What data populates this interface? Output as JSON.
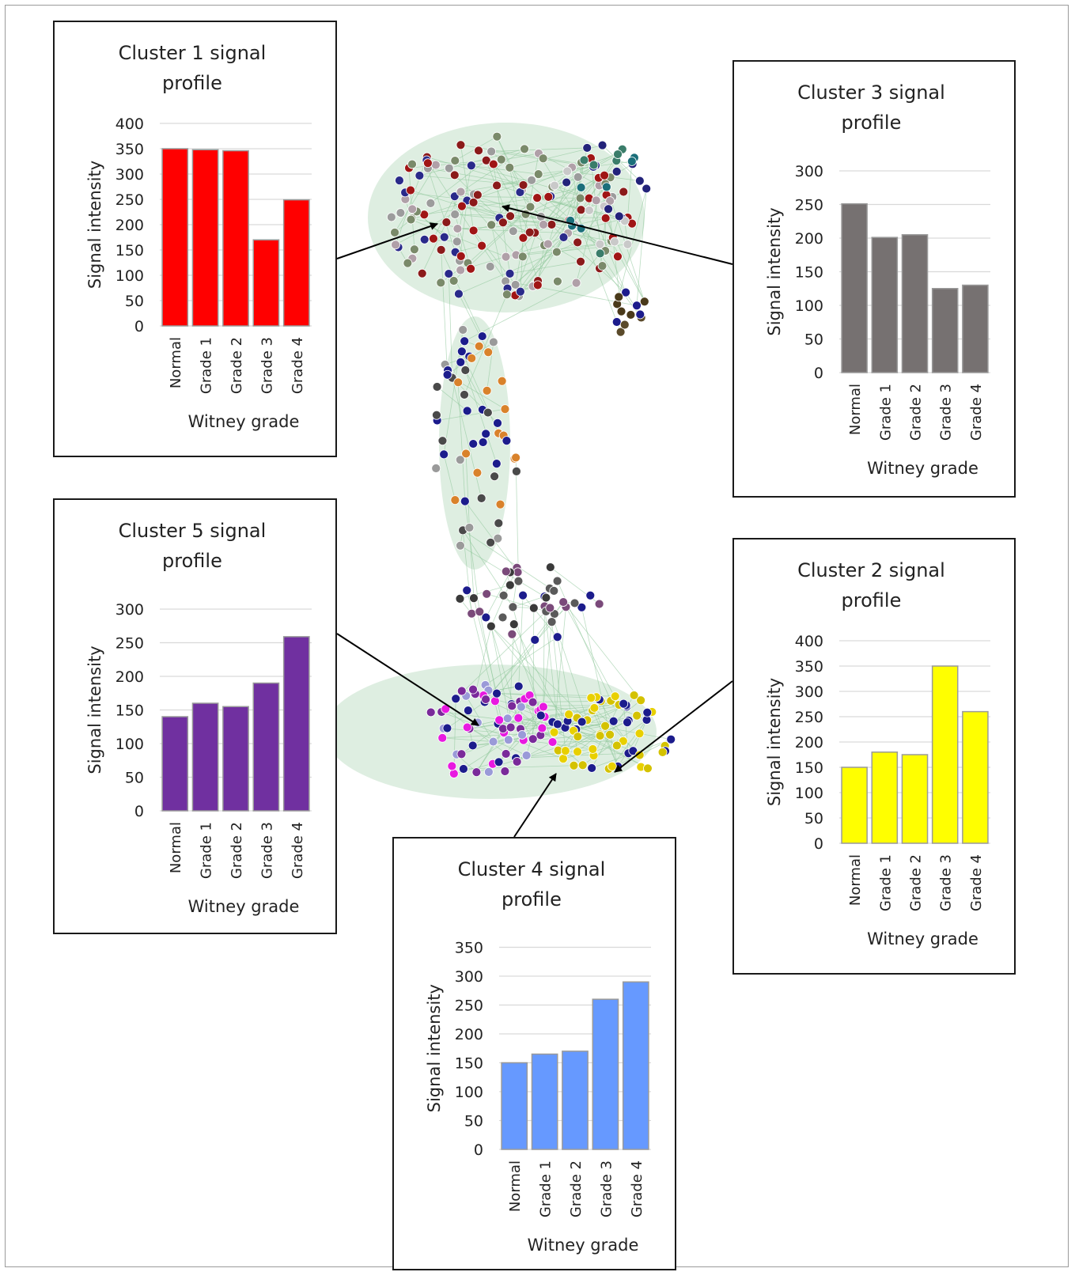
{
  "figure": {
    "common_y_label": "Signal intensity",
    "common_x_label": "Witney grade"
  },
  "chart_data": [
    {
      "type": "bar",
      "title": "Cluster 1 signal profile",
      "title_lines": [
        "Cluster 1 signal",
        "profile"
      ],
      "categories": [
        "Normal",
        "Grade 1",
        "Grade 2",
        "Grade 3",
        "Grade 4"
      ],
      "values": [
        350,
        348,
        346,
        170,
        249
      ],
      "xlabel": "Witney grade",
      "ylabel": "Signal intensity",
      "ylim": [
        0,
        400
      ],
      "yticks": [
        0,
        50,
        100,
        150,
        200,
        250,
        300,
        350,
        400
      ],
      "bar_color": "#ff0000",
      "grid": true,
      "legend": "none"
    },
    {
      "type": "bar",
      "title": "Cluster 3 signal profile",
      "title_lines": [
        "Cluster 3 signal",
        "profile"
      ],
      "categories": [
        "Normal",
        "Grade 1",
        "Grade 2",
        "Grade 3",
        "Grade 4"
      ],
      "values": [
        251,
        201,
        205,
        125,
        130
      ],
      "xlabel": "Witney grade",
      "ylabel": "Signal intensity",
      "ylim": [
        0,
        300
      ],
      "yticks": [
        0,
        50,
        100,
        150,
        200,
        250,
        300
      ],
      "bar_color": "#767171",
      "grid": true,
      "legend": "none"
    },
    {
      "type": "bar",
      "title": "Cluster 5 signal profile",
      "title_lines": [
        "Cluster 5 signal",
        "profile"
      ],
      "categories": [
        "Normal",
        "Grade 1",
        "Grade 2",
        "Grade 3",
        "Grade 4"
      ],
      "values": [
        140,
        160,
        155,
        190,
        259
      ],
      "xlabel": "Witney grade",
      "ylabel": "Signal intensity",
      "ylim": [
        0,
        300
      ],
      "yticks": [
        0,
        50,
        100,
        150,
        200,
        250,
        300
      ],
      "bar_color": "#7030a0",
      "grid": true,
      "legend": "none"
    },
    {
      "type": "bar",
      "title": "Cluster 2 signal profile",
      "title_lines": [
        "Cluster 2 signal",
        "profile"
      ],
      "categories": [
        "Normal",
        "Grade 1",
        "Grade 2",
        "Grade 3",
        "Grade 4"
      ],
      "values": [
        150,
        180,
        175,
        350,
        260
      ],
      "xlabel": "Witney grade",
      "ylabel": "Signal intensity",
      "ylim": [
        0,
        400
      ],
      "yticks": [
        0,
        50,
        100,
        150,
        200,
        250,
        300,
        350,
        400
      ],
      "bar_color": "#ffff00",
      "grid": true,
      "legend": "none"
    },
    {
      "type": "bar",
      "title": "Cluster 4 signal profile",
      "title_lines": [
        "Cluster 4 signal",
        "profile"
      ],
      "categories": [
        "Normal",
        "Grade 1",
        "Grade 2",
        "Grade 3",
        "Grade 4"
      ],
      "values": [
        150,
        165,
        170,
        260,
        290
      ],
      "xlabel": "Witney grade",
      "ylabel": "Signal intensity",
      "ylim": [
        0,
        350
      ],
      "yticks": [
        0,
        50,
        100,
        150,
        200,
        250,
        300,
        350
      ],
      "bar_color": "#6699ff",
      "grid": true,
      "legend": "none"
    }
  ]
}
